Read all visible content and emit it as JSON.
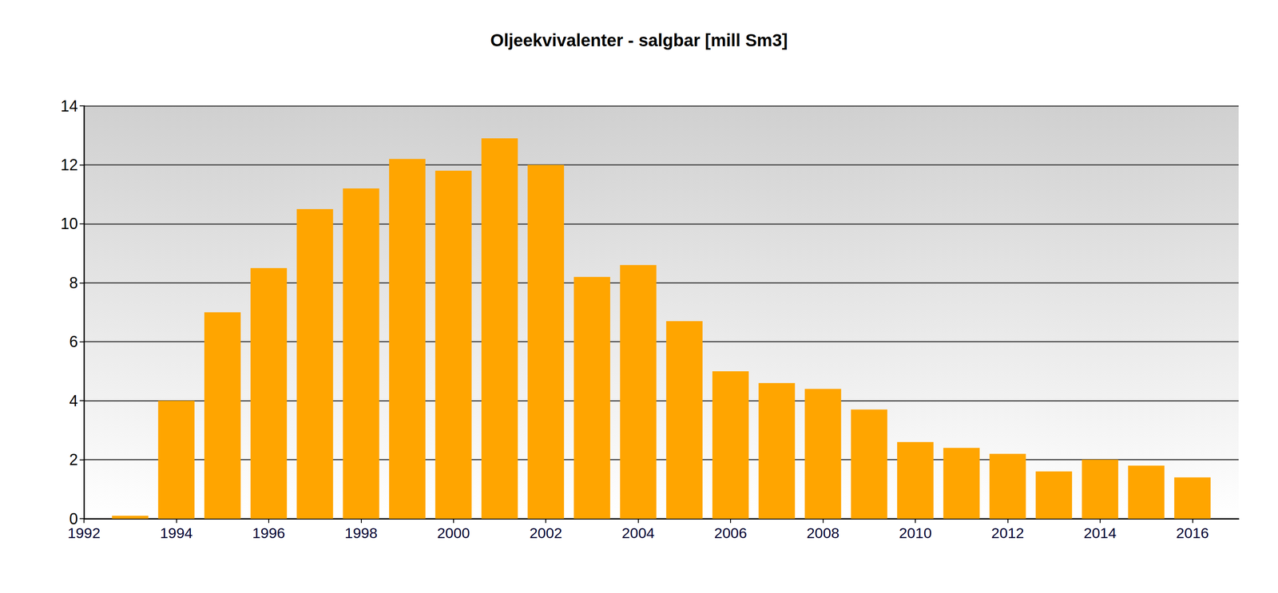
{
  "chart_data": {
    "type": "bar",
    "title": "Oljeekvivalenter - salgbar [mill Sm3]",
    "x": [
      1993,
      1994,
      1995,
      1996,
      1997,
      1998,
      1999,
      2000,
      2001,
      2002,
      2003,
      2004,
      2005,
      2006,
      2007,
      2008,
      2009,
      2010,
      2011,
      2012,
      2013,
      2014,
      2015,
      2016
    ],
    "values": [
      0.1,
      4.0,
      7.0,
      8.5,
      10.5,
      11.2,
      12.2,
      11.8,
      12.9,
      12.0,
      8.2,
      8.6,
      6.7,
      5.0,
      4.6,
      4.4,
      3.7,
      2.6,
      2.4,
      2.2,
      1.6,
      2.0,
      1.8,
      1.4
    ],
    "color": "#ffa500",
    "xlim": [
      1992,
      2017
    ],
    "xticks": [
      1992,
      1994,
      1996,
      1998,
      2000,
      2002,
      2004,
      2006,
      2008,
      2010,
      2012,
      2014,
      2016
    ],
    "ylim": [
      0,
      14
    ],
    "yticks": [
      0,
      2,
      4,
      6,
      8,
      10,
      12,
      14
    ],
    "grid": true
  }
}
